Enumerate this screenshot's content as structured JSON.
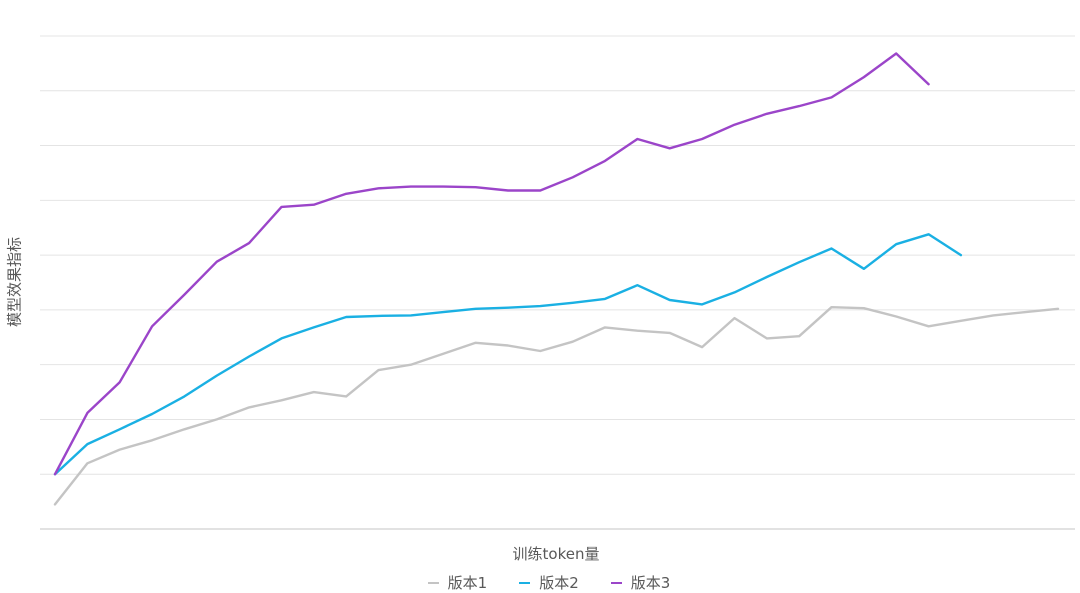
{
  "chart_data": {
    "type": "line",
    "title": "",
    "xlabel": "训练token量",
    "ylabel": "模型效果指标",
    "x_count": 32,
    "ylim": [
      0,
      9
    ],
    "grid": true,
    "legend_position": "bottom",
    "series": [
      {
        "name": "版本1",
        "color": "#c4c4c4",
        "values": [
          0.45,
          1.2,
          1.45,
          1.62,
          1.82,
          2.0,
          2.22,
          2.35,
          2.5,
          2.42,
          2.9,
          3.0,
          3.2,
          3.4,
          3.35,
          3.25,
          3.42,
          3.68,
          3.62,
          3.58,
          3.32,
          3.85,
          3.48,
          3.52,
          4.05,
          4.03,
          3.88,
          3.7,
          3.8,
          3.9,
          3.96,
          4.02
        ]
      },
      {
        "name": "版本2",
        "color": "#1ab0e3",
        "values": [
          1.0,
          1.55,
          1.82,
          2.1,
          2.42,
          2.8,
          3.15,
          3.48,
          3.68,
          3.87,
          3.89,
          3.9,
          3.96,
          4.02,
          4.04,
          4.07,
          4.13,
          4.2,
          4.45,
          4.18,
          4.1,
          4.32,
          4.6,
          4.87,
          5.12,
          4.75,
          5.2,
          5.38,
          5.0
        ]
      },
      {
        "name": "版本3",
        "color": "#9b45c9",
        "values": [
          1.0,
          2.12,
          2.68,
          3.7,
          4.28,
          4.88,
          5.22,
          5.88,
          5.92,
          6.12,
          6.22,
          6.25,
          6.25,
          6.24,
          6.18,
          6.18,
          6.42,
          6.72,
          7.12,
          6.95,
          7.12,
          7.38,
          7.58,
          7.72,
          7.88,
          8.25,
          8.68,
          8.12
        ]
      }
    ]
  }
}
